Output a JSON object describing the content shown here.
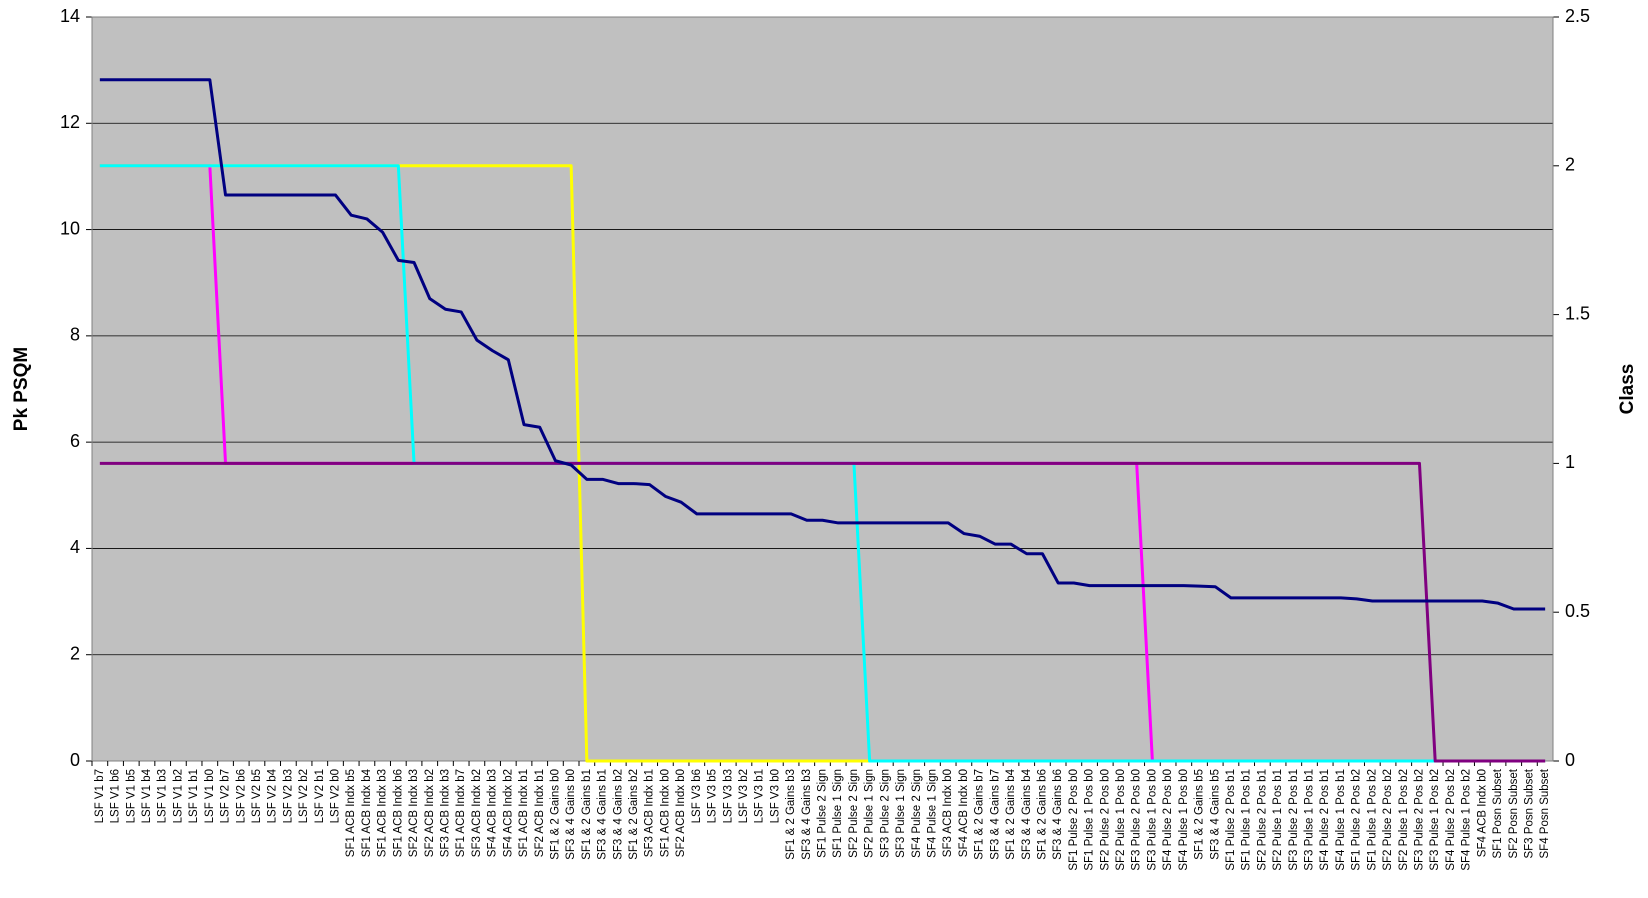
{
  "chart_data": {
    "type": "line",
    "y_label": "Pk PSQM",
    "y2_label": "Class",
    "categories": [
      "LSF V1 b7",
      "LSF V1 b6",
      "LSF V1 b5",
      "LSF V1 b4",
      "LSF V1 b3",
      "LSF V1 b2",
      "LSF V1 b1",
      "LSF V1 b0",
      "LSF V2 b7",
      "LSF V2 b6",
      "LSF V2 b5",
      "LSF V2 b4",
      "LSF V2 b3",
      "LSF V2 b2",
      "LSF V2 b1",
      "LSF V2 b0",
      "SF1 ACB Indx b5",
      "SF1 ACB Indx b4",
      "SF1 ACB Indx b3",
      "SF1 ACB Indx b6",
      "SF2 ACB Indx b3",
      "SF2 ACB Indx b2",
      "SF3 ACB Indx b3",
      "SF1 ACB Indx b7",
      "SF3 ACB Indx b2",
      "SF4 ACB Indx b3",
      "SF4 ACB Indx b2",
      "SF1 ACB Indx b1",
      "SF2 ACB Indx b1",
      "SF1 & 2 Gains b0",
      "SF3 & 4 Gains b0",
      "SF1 & 2 Gains b1",
      "SF3 & 4 Gains b1",
      "SF3 & 4 Gains b2",
      "SF1 & 2 Gains b2",
      "SF3 ACB Indx b1",
      "SF1 ACB Indx b0",
      "SF2 ACB Indx b0",
      "LSF V3 b6",
      "LSF V3 b5",
      "LSF V3 b3",
      "LSF V3 b2",
      "LSF V3 b1",
      "LSF V3 b0",
      "SF1 & 2 Gains b3",
      "SF3 & 4 Gains b3",
      "SF1 Pulse 2 Sign",
      "SF1 Pulse 1 Sign",
      "SF2 Pulse 2 Sign",
      "SF2 Pulse 1 Sign",
      "SF3 Pulse 2 Sign",
      "SF3 Pulse 1 Sign",
      "SF4 Pulse 2 Sign",
      "SF4 Pulse 1 Sign",
      "SF3 ACB Indx b0",
      "SF4 ACB Indx b0",
      "SF1 & 2 Gains b7",
      "SF3 & 4 Gains b7",
      "SF1 & 2 Gains b4",
      "SF3 & 4 Gains b4",
      "SF1 & 2 Gains b6",
      "SF3 & 4 Gains b6",
      "SF1 Pulse 2 Pos b0",
      "SF1 Pulse 1 Pos b0",
      "SF2 Pulse 2 Pos b0",
      "SF2 Pulse 1 Pos b0",
      "SF3 Pulse 2 Pos b0",
      "SF3 Pulse 1 Pos b0",
      "SF4 Pulse 2 Pos b0",
      "SF4 Pulse 1 Pos b0",
      "SF1 & 2 Gains b5",
      "SF3 & 4 Gains b5",
      "SF1 Pulse 2 Pos b1",
      "SF1 Pulse 1 Pos b1",
      "SF2 Pulse 2 Pos b1",
      "SF2 Pulse 1 Pos b1",
      "SF3 Pulse 2 Pos b1",
      "SF3 Pulse 1 Pos b1",
      "SF4 Pulse 2 Pos b1",
      "SF4 Pulse 1 Pos b1",
      "SF1 Pulse 2 Pos b2",
      "SF1 Pulse 1 Pos b2",
      "SF2 Pulse 2 Pos b2",
      "SF2 Pulse 1 Pos b2",
      "SF3 Pulse 2 Pos b2",
      "SF3 Pulse 1 Pos b2",
      "SF4 Pulse 2 Pos b2",
      "SF4 Pulse 1 Pos b2",
      "SF4 ACB Indx b0",
      "SF1 Posn Subset",
      "SF2 Posn Subset",
      "SF3 Posn Subset",
      "SF4 Posn Subset"
    ],
    "series": [
      {
        "color": "#ff00ff",
        "axis": "y2",
        "values": [
          2,
          2,
          2,
          2,
          2,
          2,
          2,
          2,
          1,
          1,
          1,
          1,
          1,
          1,
          1,
          1,
          1,
          1,
          1,
          1,
          1,
          1,
          1,
          1,
          1,
          1,
          1,
          1,
          1,
          1,
          1,
          1,
          1,
          1,
          1,
          1,
          1,
          1,
          1,
          1,
          1,
          1,
          1,
          1,
          1,
          1,
          1,
          1,
          1,
          1,
          1,
          1,
          1,
          1,
          1,
          1,
          1,
          1,
          1,
          1,
          1,
          1,
          1,
          1,
          1,
          1,
          1,
          0,
          0,
          0,
          0,
          0,
          0,
          0,
          0,
          0,
          0,
          0,
          0,
          0,
          0,
          0,
          0,
          0,
          0,
          0,
          0,
          0,
          0,
          0,
          0,
          0,
          0
        ]
      },
      {
        "color": "#ffff00",
        "axis": "y2",
        "values": [
          2,
          2,
          2,
          2,
          2,
          2,
          2,
          2,
          2,
          2,
          2,
          2,
          2,
          2,
          2,
          2,
          2,
          2,
          2,
          2,
          2,
          2,
          2,
          2,
          2,
          2,
          2,
          2,
          2,
          2,
          2,
          0,
          0,
          0,
          0,
          0,
          0,
          0,
          0,
          0,
          0,
          0,
          0,
          0,
          0,
          0,
          0,
          0,
          0,
          0,
          0,
          0,
          0,
          0,
          0,
          0,
          0,
          0,
          0,
          0,
          0,
          0,
          0,
          0,
          0,
          0,
          0,
          0,
          0,
          0,
          0,
          0,
          0,
          0,
          0,
          0,
          0,
          0,
          0,
          0,
          0,
          0,
          0,
          0,
          0,
          0,
          0,
          0,
          0,
          0,
          0,
          0,
          0
        ]
      },
      {
        "color": "#00ffff",
        "axis": "y2",
        "values": [
          2,
          2,
          2,
          2,
          2,
          2,
          2,
          2,
          2,
          2,
          2,
          2,
          2,
          2,
          2,
          2,
          2,
          2,
          2,
          2,
          1,
          1,
          1,
          1,
          1,
          1,
          1,
          1,
          1,
          1,
          1,
          1,
          1,
          1,
          1,
          1,
          1,
          1,
          1,
          1,
          1,
          1,
          1,
          1,
          1,
          1,
          1,
          1,
          1,
          0,
          0,
          0,
          0,
          0,
          0,
          0,
          0,
          0,
          0,
          0,
          0,
          0,
          0,
          0,
          0,
          0,
          0,
          0,
          0,
          0,
          0,
          0,
          0,
          0,
          0,
          0,
          0,
          0,
          0,
          0,
          0,
          0,
          0,
          0,
          0,
          0,
          0,
          0,
          0,
          0,
          0,
          0,
          0
        ]
      },
      {
        "color": "#800080",
        "axis": "y2",
        "values": [
          1,
          1,
          1,
          1,
          1,
          1,
          1,
          1,
          1,
          1,
          1,
          1,
          1,
          1,
          1,
          1,
          1,
          1,
          1,
          1,
          1,
          1,
          1,
          1,
          1,
          1,
          1,
          1,
          1,
          1,
          1,
          1,
          1,
          1,
          1,
          1,
          1,
          1,
          1,
          1,
          1,
          1,
          1,
          1,
          1,
          1,
          1,
          1,
          1,
          1,
          1,
          1,
          1,
          1,
          1,
          1,
          1,
          1,
          1,
          1,
          1,
          1,
          1,
          1,
          1,
          1,
          1,
          1,
          1,
          1,
          1,
          1,
          1,
          1,
          1,
          1,
          1,
          1,
          1,
          1,
          1,
          1,
          1,
          1,
          1,
          0,
          0,
          0,
          0,
          0,
          0,
          0,
          0
        ]
      },
      {
        "color": "#000080",
        "axis": "y",
        "values": [
          12.82,
          12.82,
          12.82,
          12.82,
          12.82,
          12.82,
          12.82,
          12.82,
          10.65,
          10.65,
          10.65,
          10.65,
          10.65,
          10.65,
          10.65,
          10.65,
          10.27,
          10.2,
          9.95,
          9.42,
          9.38,
          8.7,
          8.5,
          8.45,
          7.92,
          7.72,
          7.55,
          6.33,
          6.28,
          5.65,
          5.57,
          5.3,
          5.3,
          5.22,
          5.22,
          5.2,
          4.98,
          4.87,
          4.65,
          4.65,
          4.65,
          4.65,
          4.65,
          4.65,
          4.65,
          4.53,
          4.53,
          4.48,
          4.48,
          4.48,
          4.48,
          4.48,
          4.48,
          4.48,
          4.48,
          4.28,
          4.23,
          4.08,
          4.08,
          3.9,
          3.9,
          3.35,
          3.35,
          3.3,
          3.3,
          3.3,
          3.3,
          3.3,
          3.3,
          3.3,
          3.29,
          3.28,
          3.07,
          3.07,
          3.07,
          3.07,
          3.07,
          3.07,
          3.07,
          3.07,
          3.05,
          3.01,
          3.01,
          3.01,
          3.01,
          3.01,
          3.01,
          3.01,
          3.01,
          2.97,
          2.86,
          2.86,
          2.86
        ]
      }
    ],
    "ylim": [
      0,
      14
    ],
    "yticks": [
      0,
      2,
      4,
      6,
      8,
      10,
      12,
      14
    ],
    "y2lim": [
      0,
      2.5
    ],
    "y2ticks": [
      0,
      0.5,
      1,
      1.5,
      2,
      2.5
    ],
    "grid": true,
    "background": "#c0c0c0"
  }
}
